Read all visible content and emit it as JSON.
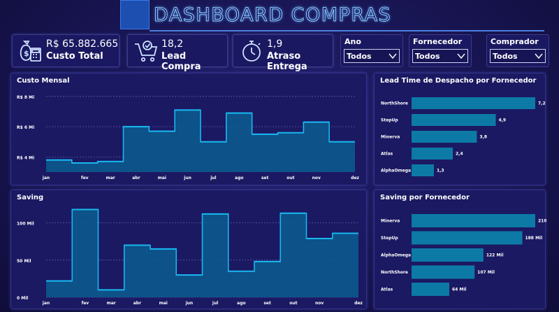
{
  "header": {
    "title": "DASHBOARD COMPRAS"
  },
  "kpis": [
    {
      "value": "R$ 65.882.665",
      "label": "Custo Total",
      "icon": "money-calculator-icon"
    },
    {
      "value": "18,2",
      "label": "Lead Compra",
      "icon": "cart-check-icon"
    },
    {
      "value": "1,9",
      "label": "Atraso Entrega",
      "icon": "stopwatch-icon"
    }
  ],
  "filters": [
    {
      "label": "Ano",
      "value": "Todos"
    },
    {
      "label": "Fornecedor",
      "value": "Todos"
    },
    {
      "label": "Comprador",
      "value": "Todos"
    }
  ],
  "colors": {
    "bar": "#0d7aa6",
    "line": "#18b8f0",
    "area": "#0b5d8f",
    "bg": "#1b1962"
  },
  "chart_data": [
    {
      "type": "area",
      "title": "Custo Mensal",
      "categories": [
        "jan",
        "fev",
        "mar",
        "abr",
        "mai",
        "jun",
        "jul",
        "ago",
        "set",
        "out",
        "nov",
        "dez"
      ],
      "values": [
        3.8,
        3.6,
        3.7,
        6.0,
        5.7,
        7.1,
        5.0,
        6.9,
        5.5,
        5.6,
        6.3,
        5.0
      ],
      "yticks": [
        "R$ 4 Mi",
        "R$ 6 Mi",
        "R$ 8 Mi"
      ],
      "ytick_values": [
        4,
        6,
        8
      ],
      "ylim": [
        3,
        8.5
      ],
      "unit": "R$ Mi",
      "grid": true
    },
    {
      "type": "bar",
      "title": "Lead Time de Despacho por Fornecedor",
      "categories": [
        "NorthShore",
        "StepUp",
        "Minerva",
        "Atlas",
        "AlphaOmega"
      ],
      "values": [
        7.2,
        4.9,
        3.8,
        2.4,
        1.3
      ],
      "labels": [
        "7,2",
        "4,9",
        "3,8",
        "2,4",
        "1,3"
      ]
    },
    {
      "type": "area",
      "title": "Saving",
      "categories": [
        "jan",
        "fev",
        "mar",
        "abr",
        "mai",
        "jun",
        "jul",
        "ago",
        "set",
        "out",
        "nov",
        "dez"
      ],
      "values": [
        22,
        118,
        10,
        70,
        65,
        30,
        112,
        35,
        48,
        113,
        79,
        86
      ],
      "yticks": [
        "0 Mil",
        "50 Mil",
        "100 Mil"
      ],
      "ytick_values": [
        0,
        50,
        100
      ],
      "ylim": [
        0,
        125
      ],
      "unit": "Mil",
      "grid": true
    },
    {
      "type": "bar",
      "title": "Saving por Fornecedor",
      "categories": [
        "Minerva",
        "StepUp",
        "AlphaOmega",
        "NorthShore",
        "Atlas"
      ],
      "values": [
        210,
        188,
        122,
        107,
        64
      ],
      "labels": [
        "210 Mil",
        "188 Mil",
        "122 Mil",
        "107 Mil",
        "64 Mil"
      ]
    }
  ]
}
